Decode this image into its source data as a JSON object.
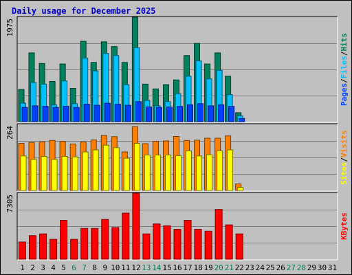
{
  "title": "Daily usage for December 2025",
  "chart_data": {
    "type": "bar",
    "title": "Daily usage for December 2025",
    "x": [
      "1",
      "2",
      "3",
      "4",
      "5",
      "6",
      "7",
      "8",
      "9",
      "10",
      "11",
      "12",
      "13",
      "14",
      "15",
      "16",
      "17",
      "18",
      "19",
      "20",
      "21",
      "22",
      "23",
      "24",
      "25",
      "26",
      "27",
      "28",
      "29",
      "30",
      "31"
    ],
    "weekend_days": [
      "6",
      "7",
      "13",
      "14",
      "20",
      "21",
      "27",
      "28"
    ],
    "panels": [
      {
        "ymax_label": "1975",
        "ylim": [
          0,
          1975
        ],
        "legend": [
          "Pages",
          "Files",
          "Hits"
        ],
        "separator": "/",
        "series": [
          {
            "name": "Hits",
            "color": "#00805c",
            "values": [
              610,
              1300,
              1100,
              760,
              1090,
              630,
              1520,
              1120,
              1510,
              1420,
              1120,
              1975,
              710,
              620,
              700,
              790,
              1250,
              1480,
              1090,
              1300,
              860,
              170,
              null,
              null,
              null,
              null,
              null,
              null,
              null,
              null,
              null
            ]
          },
          {
            "name": "Files",
            "color": "#00c0ff",
            "values": [
              350,
              740,
              710,
              320,
              770,
              340,
              1200,
              960,
              1290,
              1250,
              700,
              1400,
              400,
              300,
              380,
              530,
              860,
              1150,
              810,
              970,
              510,
              110,
              null,
              null,
              null,
              null,
              null,
              null,
              null,
              null,
              null
            ]
          },
          {
            "name": "Pages",
            "color": "#0040ff",
            "values": [
              270,
              300,
              290,
              270,
              290,
              270,
              330,
              310,
              350,
              330,
              310,
              380,
              280,
              270,
              280,
              290,
              320,
              340,
              300,
              320,
              290,
              60,
              null,
              null,
              null,
              null,
              null,
              null,
              null,
              null,
              null
            ]
          }
        ]
      },
      {
        "ymax_label": "264",
        "ylim": [
          0,
          264
        ],
        "legend": [
          "Sites",
          "Visits"
        ],
        "separator": "/",
        "series": [
          {
            "name": "Visits",
            "color": "#ff8000",
            "values": [
              188,
              192,
              194,
              200,
              196,
              186,
              194,
              202,
              220,
              215,
              154,
              255,
              187,
              196,
              198,
              216,
              200,
              201,
              209,
              209,
              218,
              26,
              null,
              null,
              null,
              null,
              null,
              null,
              null,
              null,
              null
            ]
          },
          {
            "name": "Sites",
            "color": "#ffff00",
            "values": [
              138,
              124,
              136,
              124,
              136,
              134,
              154,
              162,
              181,
              171,
              129,
              188,
              142,
              142,
              142,
              139,
              158,
              138,
              143,
              158,
              162,
              12,
              null,
              null,
              null,
              null,
              null,
              null,
              null,
              null,
              null
            ]
          }
        ]
      },
      {
        "ymax_label": "7305",
        "ylim": [
          0,
          7305
        ],
        "legend": [
          "KBytes"
        ],
        "separator": "",
        "series": [
          {
            "name": "KBytes",
            "color": "#ff0000",
            "values": [
              1900,
              2600,
              2800,
              2200,
              4300,
              2200,
              3400,
              3400,
              4400,
              3500,
              5100,
              7305,
              2800,
              3900,
              3700,
              3300,
              4300,
              3300,
              3100,
              5500,
              3800,
              2800,
              null,
              null,
              null,
              null,
              null,
              null,
              null,
              null,
              null
            ]
          }
        ]
      }
    ]
  }
}
